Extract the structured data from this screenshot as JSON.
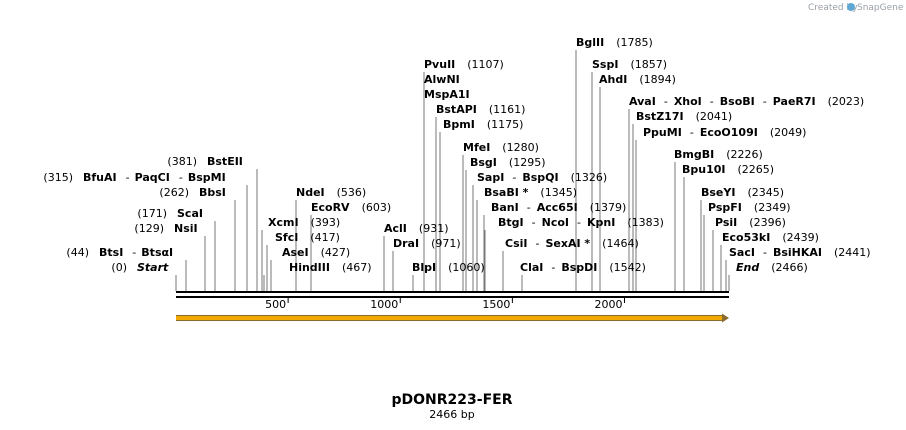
{
  "credit": {
    "text": "Created by",
    "brand": "SnapGene"
  },
  "plasmid": {
    "name": "pDONR223-FER",
    "size": 2466,
    "size_label": "2466 bp"
  },
  "axis": {
    "ticks": [
      500,
      1000,
      1500,
      2000
    ]
  },
  "sites": [
    {
      "id": "start",
      "pos": "(0)",
      "names": [
        "Start"
      ],
      "italic": true,
      "side": "left"
    },
    {
      "id": "btsi",
      "pos": "(44)",
      "names": [
        "BtsI",
        "BtsαI"
      ],
      "side": "left"
    },
    {
      "id": "nsii",
      "pos": "(129)",
      "names": [
        "NsiI"
      ],
      "side": "left"
    },
    {
      "id": "scai",
      "pos": "(171)",
      "names": [
        "ScaI"
      ],
      "side": "left"
    },
    {
      "id": "bbsi",
      "pos": "(262)",
      "names": [
        "BbsI"
      ],
      "side": "left"
    },
    {
      "id": "bfuai",
      "pos": "(315)",
      "names": [
        "BfuAI",
        "PaqCI",
        "BspMI"
      ],
      "side": "left"
    },
    {
      "id": "bsteii",
      "pos": "(381)",
      "names": [
        "BstEII"
      ],
      "side": "left"
    },
    {
      "id": "hindiii",
      "pos": "(467)",
      "names": [
        "HindIII"
      ],
      "side": "right"
    },
    {
      "id": "asei",
      "pos": "(427)",
      "names": [
        "AseI"
      ],
      "side": "right"
    },
    {
      "id": "sfci",
      "pos": "(417)",
      "names": [
        "SfcI"
      ],
      "side": "right"
    },
    {
      "id": "xcmi",
      "pos": "(393)",
      "names": [
        "XcmI"
      ],
      "side": "right"
    },
    {
      "id": "ecorv",
      "pos": "(603)",
      "names": [
        "EcoRV"
      ],
      "side": "right"
    },
    {
      "id": "ndei",
      "pos": "(536)",
      "names": [
        "NdeI"
      ],
      "side": "right"
    },
    {
      "id": "acli",
      "pos": "(931)",
      "names": [
        "AclI"
      ],
      "side": "right"
    },
    {
      "id": "drai",
      "pos": "(971)",
      "names": [
        "DraI"
      ],
      "side": "right"
    },
    {
      "id": "blpi",
      "pos": "(1060)",
      "names": [
        "BlpI"
      ],
      "side": "right"
    },
    {
      "id": "pvuii",
      "pos": "(1107)",
      "names": [
        "PvuII"
      ],
      "side": "right"
    },
    {
      "id": "alwni",
      "pos": "",
      "names": [
        "AlwNI"
      ],
      "side": "right"
    },
    {
      "id": "mspa1i",
      "pos": "",
      "names": [
        "MspA1I"
      ],
      "side": "right"
    },
    {
      "id": "bstapi",
      "pos": "(1161)",
      "names": [
        "BstAPI"
      ],
      "side": "right"
    },
    {
      "id": "bpmi",
      "pos": "(1175)",
      "names": [
        "BpmI"
      ],
      "side": "right"
    },
    {
      "id": "mfei",
      "pos": "(1280)",
      "names": [
        "MfeI"
      ],
      "side": "right"
    },
    {
      "id": "bsgi",
      "pos": "(1295)",
      "names": [
        "BsgI"
      ],
      "side": "right"
    },
    {
      "id": "sapi",
      "pos": "(1326)",
      "names": [
        "SapI",
        "BspQI"
      ],
      "side": "right"
    },
    {
      "id": "bsabi",
      "pos": "(1345)",
      "names": [
        "BsaBI *"
      ],
      "side": "right"
    },
    {
      "id": "bani",
      "pos": "(1379)",
      "names": [
        "BanI",
        "Acc65I"
      ],
      "side": "right"
    },
    {
      "id": "btgi",
      "pos": "(1383)",
      "names": [
        "BtgI",
        "NcoI",
        "KpnI"
      ],
      "side": "right"
    },
    {
      "id": "csii",
      "pos": "(1464)",
      "names": [
        "CsiI",
        "SexAI *"
      ],
      "side": "right"
    },
    {
      "id": "clai",
      "pos": "(1542)",
      "names": [
        "ClaI",
        "BspDI"
      ],
      "side": "right"
    },
    {
      "id": "bglii",
      "pos": "(1785)",
      "names": [
        "BglII"
      ],
      "side": "right"
    },
    {
      "id": "sspi",
      "pos": "(1857)",
      "names": [
        "SspI"
      ],
      "side": "right"
    },
    {
      "id": "ahdi",
      "pos": "(1894)",
      "names": [
        "AhdI"
      ],
      "side": "right"
    },
    {
      "id": "avai",
      "pos": "(2023)",
      "names": [
        "AvaI",
        "XhoI",
        "BsoBI",
        "PaeR7I"
      ],
      "side": "right"
    },
    {
      "id": "bstz17i",
      "pos": "(2041)",
      "names": [
        "BstZ17I"
      ],
      "side": "right"
    },
    {
      "id": "ppumi",
      "pos": "(2049)",
      "names": [
        "PpuMI",
        "EcoO109I"
      ],
      "side": "right"
    },
    {
      "id": "bmgbi",
      "pos": "(2226)",
      "names": [
        "BmgBI"
      ],
      "side": "right"
    },
    {
      "id": "bpu10i",
      "pos": "(2265)",
      "names": [
        "Bpu10I"
      ],
      "side": "right"
    },
    {
      "id": "bseyi",
      "pos": "(2345)",
      "names": [
        "BseYI"
      ],
      "side": "right"
    },
    {
      "id": "pspfi",
      "pos": "(2349)",
      "names": [
        "PspFI"
      ],
      "side": "right"
    },
    {
      "id": "psii",
      "pos": "(2396)",
      "names": [
        "PsiI"
      ],
      "side": "right"
    },
    {
      "id": "eco53ki",
      "pos": "(2439)",
      "names": [
        "Eco53kI"
      ],
      "side": "right"
    },
    {
      "id": "saci",
      "pos": "(2441)",
      "names": [
        "SacI",
        "BsiHKAI"
      ],
      "side": "right"
    },
    {
      "id": "end",
      "pos": "(2466)",
      "names": [
        "End"
      ],
      "italic": true,
      "side": "right"
    }
  ],
  "colors": {
    "feature_fill": "#f2a900",
    "feature_stroke": "#8a6d2e",
    "credit": "#9aa0a6"
  }
}
